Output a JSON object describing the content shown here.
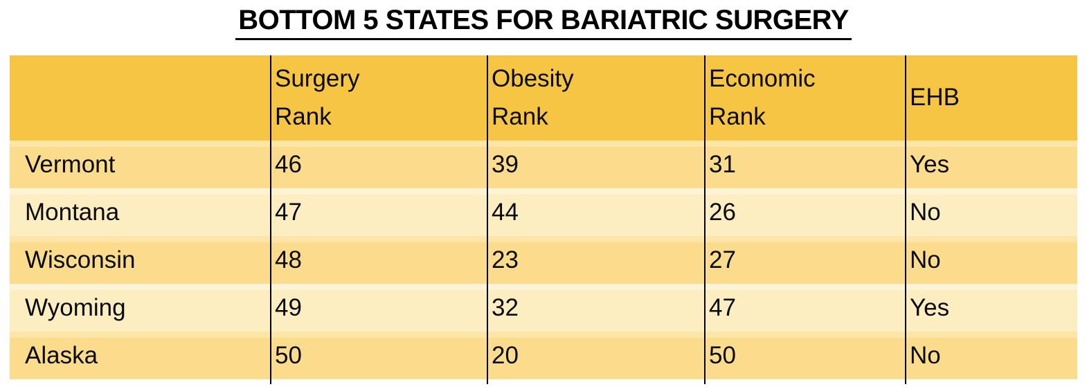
{
  "title": "BOTTOM 5 STATES FOR BARIATRIC SURGERY",
  "colors": {
    "header_bg": "#f6c544",
    "row_dark_bg": "#fadc8c",
    "row_light_bg": "#fceec0",
    "grid_line": "#000000",
    "text": "#0a0a0a",
    "title_text": "#000000"
  },
  "table": {
    "headers": [
      "",
      "Surgery\nRank",
      "Obesity\nRank",
      "Economic\nRank",
      "EHB"
    ],
    "rows": [
      {
        "state": "Vermont",
        "surgery_rank": "46",
        "obesity_rank": "39",
        "economic_rank": "31",
        "ehb": "Yes"
      },
      {
        "state": "Montana",
        "surgery_rank": "47",
        "obesity_rank": "44",
        "economic_rank": "26",
        "ehb": "No"
      },
      {
        "state": "Wisconsin",
        "surgery_rank": "48",
        "obesity_rank": "23",
        "economic_rank": "27",
        "ehb": "No"
      },
      {
        "state": "Wyoming",
        "surgery_rank": "49",
        "obesity_rank": "32",
        "economic_rank": "47",
        "ehb": "Yes"
      },
      {
        "state": "Alaska",
        "surgery_rank": "50",
        "obesity_rank": "20",
        "economic_rank": "50",
        "ehb": "No"
      }
    ]
  },
  "chart_data": {
    "type": "table",
    "title": "BOTTOM 5 STATES FOR BARIATRIC SURGERY",
    "columns": [
      "",
      "Surgery Rank",
      "Obesity Rank",
      "Economic Rank",
      "EHB"
    ],
    "rows": [
      [
        "Vermont",
        46,
        39,
        31,
        "Yes"
      ],
      [
        "Montana",
        47,
        44,
        26,
        "No"
      ],
      [
        "Wisconsin",
        48,
        23,
        27,
        "No"
      ],
      [
        "Wyoming",
        49,
        32,
        47,
        "Yes"
      ],
      [
        "Alaska",
        50,
        20,
        50,
        "No"
      ]
    ]
  }
}
